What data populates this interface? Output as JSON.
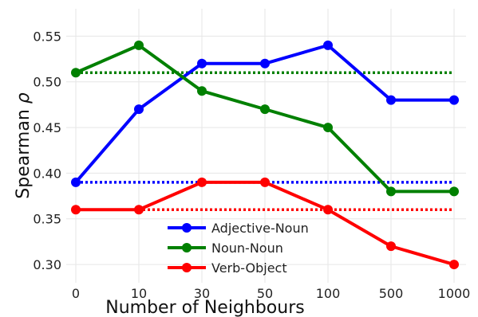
{
  "chart_data": {
    "type": "line",
    "xlabel": "Number of Neighbours",
    "ylabel_text": "Spearman ",
    "ylabel_symbol": "ρ",
    "categories": [
      "0",
      "10",
      "30",
      "50",
      "100",
      "500",
      "1000"
    ],
    "ylim": [
      0.28,
      0.58
    ],
    "yticks": [
      "0.30",
      "0.35",
      "0.40",
      "0.45",
      "0.50",
      "0.55"
    ],
    "grid": true,
    "legend_position": "lower-center",
    "series": [
      {
        "name": "Adjective-Noun",
        "color": "#0000ff",
        "values": [
          0.39,
          0.47,
          0.52,
          0.52,
          0.54,
          0.48,
          0.48
        ],
        "baseline": 0.39
      },
      {
        "name": "Noun-Noun",
        "color": "#008000",
        "values": [
          0.51,
          0.54,
          0.49,
          0.47,
          0.45,
          0.38,
          0.38
        ],
        "baseline": 0.51
      },
      {
        "name": "Verb-Object",
        "color": "#ff0000",
        "values": [
          0.36,
          0.36,
          0.39,
          0.39,
          0.36,
          0.32,
          0.3
        ],
        "baseline": 0.36
      }
    ]
  }
}
